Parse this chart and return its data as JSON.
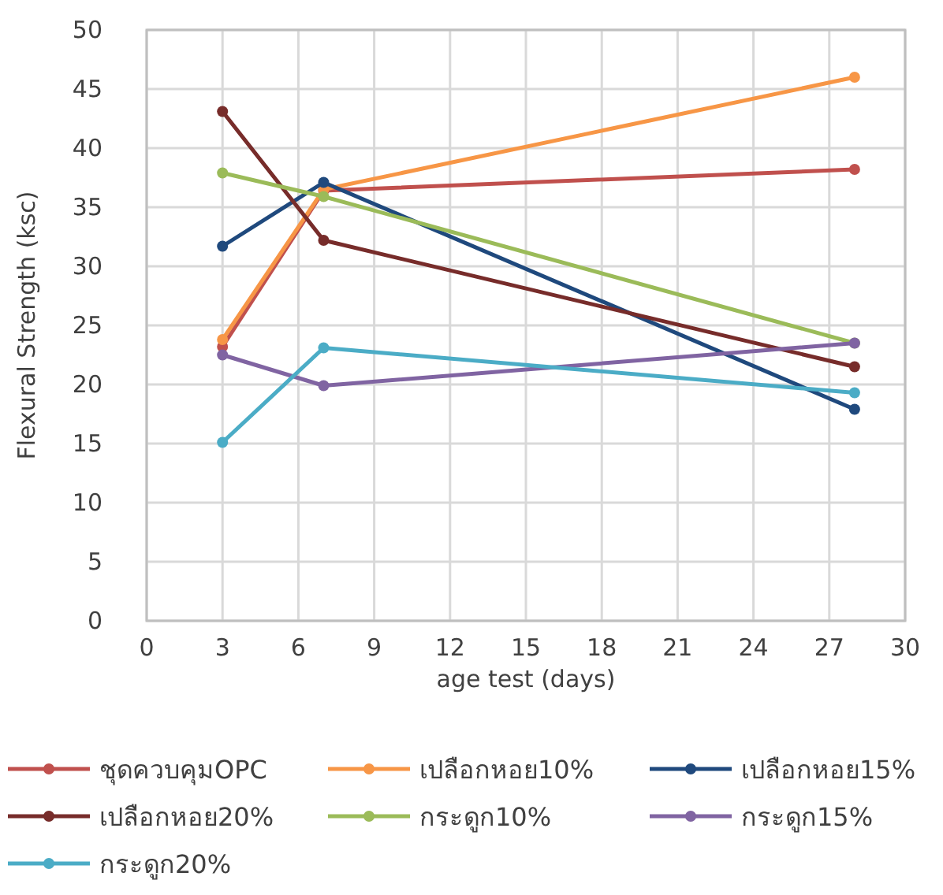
{
  "chart_data": {
    "type": "line",
    "xlabel": "age test (days)",
    "ylabel": "Flexural Strength (ksc)",
    "x": [
      3,
      7,
      28
    ],
    "xlim": [
      0,
      30
    ],
    "xticks": [
      0,
      3,
      6,
      9,
      12,
      15,
      18,
      21,
      24,
      27,
      30
    ],
    "ylim": [
      0,
      50
    ],
    "yticks": [
      0,
      5,
      10,
      15,
      20,
      25,
      30,
      35,
      40,
      45,
      50
    ],
    "grid": true,
    "legend": "bottom",
    "marker": "circle",
    "line_style": "solid",
    "series": [
      {
        "name": "ชุดควบคุมOPC",
        "color": "#c0504d",
        "values": [
          23.2,
          36.4,
          38.2
        ]
      },
      {
        "name": "เปลือกหอย10%",
        "color": "#f79646",
        "values": [
          23.8,
          36.5,
          46
        ]
      },
      {
        "name": "เปลือกหอย15%",
        "color": "#1f497d",
        "values": [
          31.7,
          37.1,
          17.9
        ]
      },
      {
        "name": "เปลือกหอย20%",
        "color": "#772c2a",
        "values": [
          43.1,
          32.2,
          21.5
        ]
      },
      {
        "name": "กระดูก10%",
        "color": "#9bbb59",
        "values": [
          37.9,
          35.9,
          23.5
        ]
      },
      {
        "name": "กระดูก15%",
        "color": "#8064a2",
        "values": [
          22.5,
          19.9,
          23.5
        ]
      },
      {
        "name": "กระดูก20%",
        "color": "#4bacc6",
        "values": [
          15.1,
          23.1,
          19.3
        ]
      }
    ]
  }
}
